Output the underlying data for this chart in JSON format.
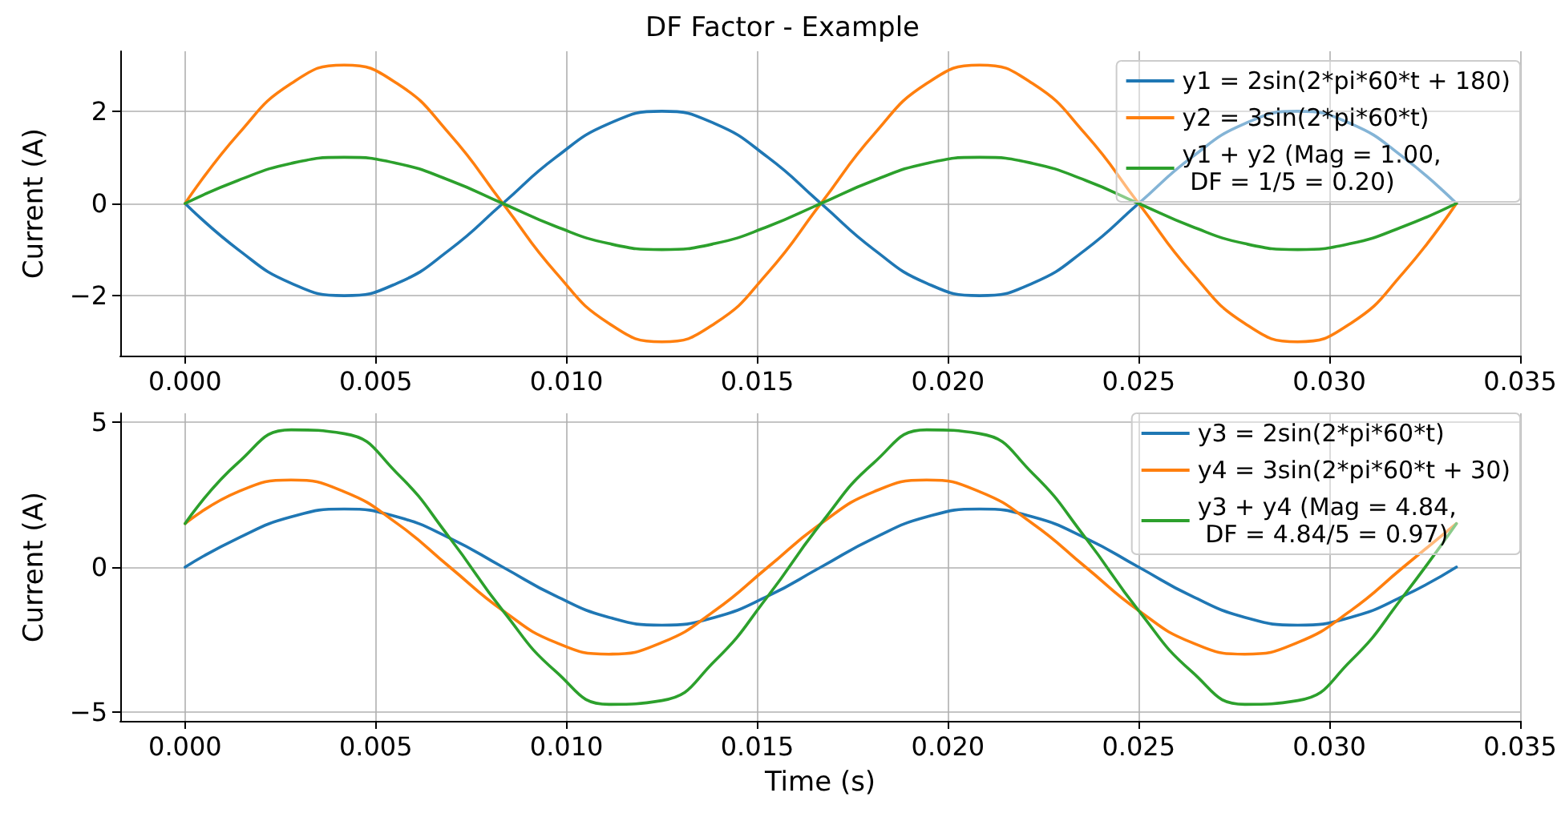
{
  "chart_data": [
    {
      "type": "line",
      "title": "DF Factor - Example",
      "ylabel": "Current (A)",
      "x": [
        0,
        0.00139,
        0.00278,
        0.00417,
        0.00556,
        0.00694,
        0.00833,
        0.00972,
        0.01111,
        0.0125,
        0.01389,
        0.01528,
        0.01667,
        0.01806,
        0.01944,
        0.02083,
        0.02222,
        0.02361,
        0.025,
        0.02639,
        0.02778,
        0.02917,
        0.03056,
        0.03194,
        0.03333
      ],
      "series": [
        {
          "name": "y1 = 2sin(2*pi*60*t + 180)",
          "color": "#1f77b4",
          "values": [
            0,
            -1,
            -1.73,
            -2,
            -1.73,
            -1,
            0,
            1,
            1.73,
            2,
            1.73,
            1,
            0,
            -1,
            -1.73,
            -2,
            -1.73,
            -1,
            0,
            1,
            1.73,
            2,
            1.73,
            1,
            0
          ]
        },
        {
          "name": "y2 = 3sin(2*pi*60*t)",
          "color": "#ff7f0e",
          "values": [
            0,
            1.5,
            2.6,
            3,
            2.6,
            1.5,
            0,
            -1.5,
            -2.6,
            -3,
            -2.6,
            -1.5,
            0,
            1.5,
            2.6,
            3,
            2.6,
            1.5,
            0,
            -1.5,
            -2.6,
            -3,
            -2.6,
            -1.5,
            0
          ]
        },
        {
          "name": "y1 + y2 (Mag = 1.00,\n DF = 1/5 = 0.20)",
          "color": "#2ca02c",
          "values": [
            0,
            0.5,
            0.87,
            1,
            0.87,
            0.5,
            0,
            -0.5,
            -0.87,
            -1,
            -0.87,
            -0.5,
            0,
            0.5,
            0.87,
            1,
            0.87,
            0.5,
            0,
            -0.5,
            -0.87,
            -1,
            -0.87,
            -0.5,
            0
          ]
        }
      ],
      "xlim": [
        -0.0017,
        0.035
      ],
      "xticks": [
        {
          "value": 0,
          "label": "0.000"
        },
        {
          "value": 0.005,
          "label": "0.005"
        },
        {
          "value": 0.01,
          "label": "0.010"
        },
        {
          "value": 0.015,
          "label": "0.015"
        },
        {
          "value": 0.02,
          "label": "0.020"
        },
        {
          "value": 0.025,
          "label": "0.025"
        },
        {
          "value": 0.03,
          "label": "0.030"
        },
        {
          "value": 0.035,
          "label": "0.035"
        }
      ],
      "ylim": [
        -3.3,
        3.3
      ],
      "yticks": [
        {
          "value": -2,
          "label": "−2"
        },
        0,
        2
      ],
      "grid": true,
      "legend": "top right",
      "marker": "none",
      "line_style": "solid"
    },
    {
      "type": "line",
      "xlabel": "Time (s)",
      "ylabel": "Current (A)",
      "x": [
        0,
        0.00139,
        0.00278,
        0.00417,
        0.00556,
        0.00694,
        0.00833,
        0.00972,
        0.01111,
        0.0125,
        0.01389,
        0.01528,
        0.01667,
        0.01806,
        0.01944,
        0.02083,
        0.02222,
        0.02361,
        0.025,
        0.02639,
        0.02778,
        0.02917,
        0.03056,
        0.03194,
        0.03333
      ],
      "series": [
        {
          "name": "y3 = 2sin(2*pi*60*t)",
          "color": "#1f77b4",
          "values": [
            0,
            1,
            1.73,
            2,
            1.73,
            1,
            0,
            -1,
            -1.73,
            -2,
            -1.73,
            -1,
            0,
            1,
            1.73,
            2,
            1.73,
            1,
            0,
            -1,
            -1.73,
            -2,
            -1.73,
            -1,
            0
          ]
        },
        {
          "name": "y4 = 3sin(2*pi*60*t + 30)",
          "color": "#ff7f0e",
          "values": [
            1.5,
            2.6,
            3,
            2.6,
            1.5,
            0,
            -1.5,
            -2.6,
            -3,
            -2.6,
            -1.5,
            0,
            1.5,
            2.6,
            3,
            2.6,
            1.5,
            0,
            -1.5,
            -2.6,
            -3,
            -2.6,
            -1.5,
            0,
            1.5
          ]
        },
        {
          "name": "y3 + y4 (Mag = 4.84,\n DF = 4.84/5 = 0.97)",
          "color": "#2ca02c",
          "values": [
            1.5,
            3.6,
            4.73,
            4.6,
            3.23,
            1,
            -1.5,
            -3.6,
            -4.73,
            -4.6,
            -3.23,
            -1,
            1.5,
            3.6,
            4.73,
            4.6,
            3.23,
            1,
            -1.5,
            -3.6,
            -4.73,
            -4.6,
            -3.23,
            -1,
            1.5
          ]
        }
      ],
      "xlim": [
        -0.0017,
        0.035
      ],
      "xticks": [
        {
          "value": 0,
          "label": "0.000"
        },
        {
          "value": 0.005,
          "label": "0.005"
        },
        {
          "value": 0.01,
          "label": "0.010"
        },
        {
          "value": 0.015,
          "label": "0.015"
        },
        {
          "value": 0.02,
          "label": "0.020"
        },
        {
          "value": 0.025,
          "label": "0.025"
        },
        {
          "value": 0.03,
          "label": "0.030"
        },
        {
          "value": 0.035,
          "label": "0.035"
        }
      ],
      "ylim": [
        -5.3,
        5.3
      ],
      "yticks": [
        {
          "value": -5,
          "label": "−5"
        },
        0,
        5
      ],
      "grid": true,
      "legend": "top right",
      "marker": "none",
      "line_style": "solid"
    }
  ]
}
